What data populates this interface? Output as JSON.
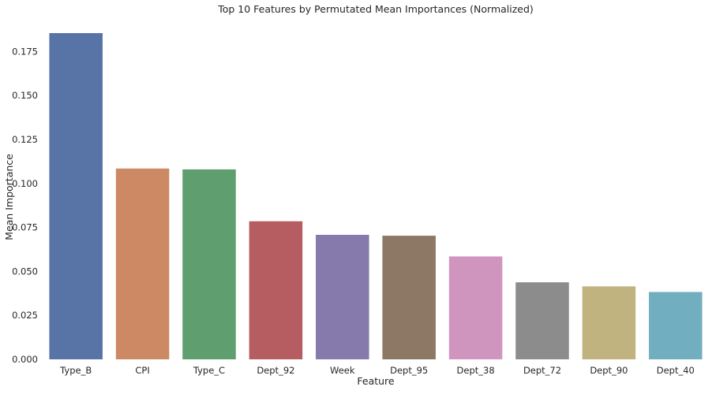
{
  "chart_data": {
    "type": "bar",
    "title": "Top 10 Features by Permutated Mean Importances (Normalized)",
    "xlabel": "Feature",
    "ylabel": "Mean Importance",
    "categories": [
      "Type_B",
      "CPI",
      "Type_C",
      "Dept_92",
      "Week",
      "Dept_95",
      "Dept_38",
      "Dept_72",
      "Dept_90",
      "Dept_40"
    ],
    "values": [
      0.1855,
      0.1085,
      0.108,
      0.0785,
      0.0708,
      0.0703,
      0.0585,
      0.0438,
      0.0415,
      0.0383
    ],
    "colors": [
      "#5874a6",
      "#cc8963",
      "#5f9e6e",
      "#b55d60",
      "#857aab",
      "#8d7866",
      "#d095bf",
      "#8c8c8c",
      "#c1b37f",
      "#71aec0"
    ],
    "yticks": [
      "0.000",
      "0.025",
      "0.050",
      "0.075",
      "0.100",
      "0.125",
      "0.150",
      "0.175"
    ],
    "ylim": [
      0,
      0.1855
    ],
    "grid": false,
    "legend": "none"
  }
}
